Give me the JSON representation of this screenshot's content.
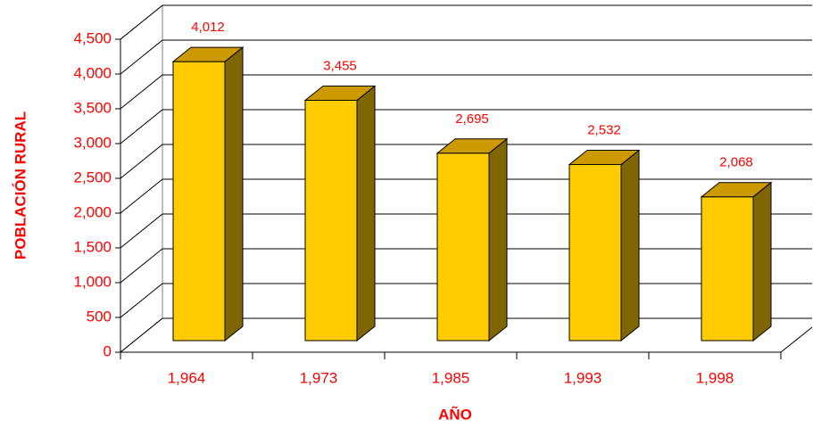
{
  "chart_data": {
    "type": "bar3d",
    "categories": [
      "1,964",
      "1,973",
      "1,985",
      "1,993",
      "1,998"
    ],
    "values": [
      4012,
      3455,
      2695,
      2532,
      2068
    ],
    "value_labels": [
      "4,012",
      "3,455",
      "2,695",
      "2,532",
      "2,068"
    ],
    "color": "#ffcc00",
    "xlabel": "AÑO",
    "ylabel": "POBLACIÓN RURAL",
    "ylim": [
      0,
      4500
    ],
    "yticks": [
      0,
      500,
      {
        "value": 1000,
        "label": "1,000"
      },
      {
        "value": 1500,
        "label": "1,500"
      },
      {
        "value": 2000,
        "label": "2,000"
      },
      {
        "value": 2500,
        "label": "2,500"
      },
      {
        "value": 3000,
        "label": "3,000"
      },
      {
        "value": 3500,
        "label": "3,500"
      },
      {
        "value": 4000,
        "label": "4,000"
      },
      {
        "value": 4500,
        "label": "4,500"
      }
    ],
    "grid": true
  }
}
